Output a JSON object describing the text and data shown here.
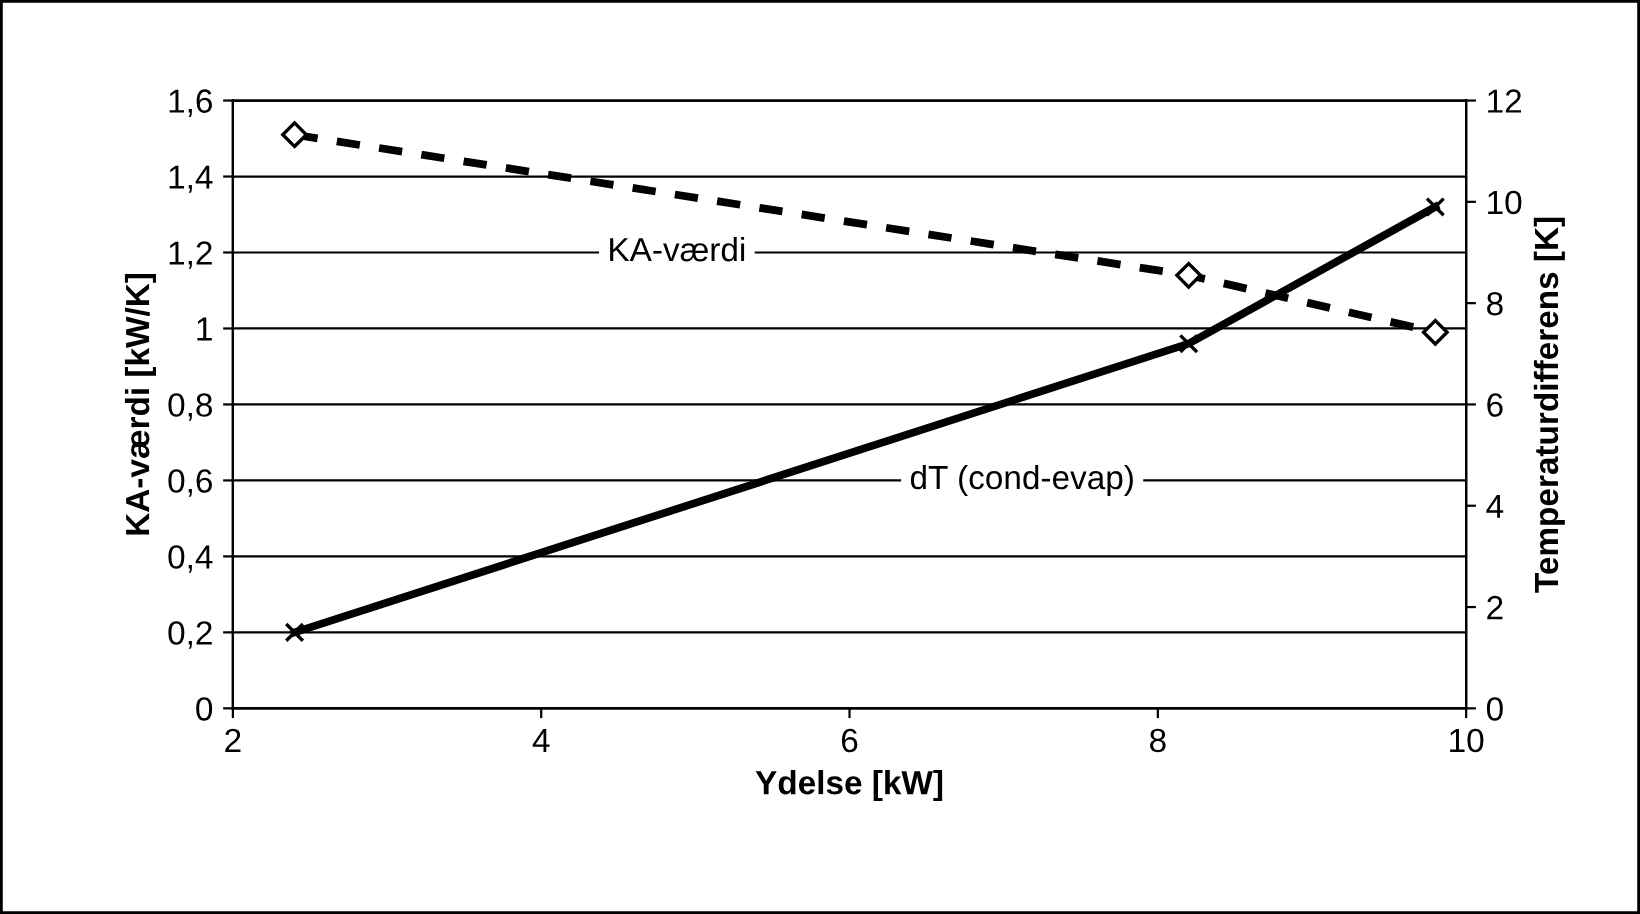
{
  "chart_data": {
    "type": "line",
    "xlabel": "Ydelse [kW]",
    "ylabel": "KA-værdi [kW/K]",
    "y2label": "Temperaturdifferens [K]",
    "xlim": [
      2,
      10
    ],
    "xticks": [
      2,
      4,
      6,
      8,
      10
    ],
    "ylim": [
      0,
      1.6
    ],
    "yticks": [
      {
        "value": 0,
        "label": "0"
      },
      {
        "value": 0.2,
        "label": "0,2"
      },
      {
        "value": 0.4,
        "label": "0,4"
      },
      {
        "value": 0.6,
        "label": "0,6"
      },
      {
        "value": 0.8,
        "label": "0,8"
      },
      {
        "value": 1,
        "label": "1"
      },
      {
        "value": 1.2,
        "label": "1,2"
      },
      {
        "value": 1.4,
        "label": "1,4"
      },
      {
        "value": 1.6,
        "label": "1,6"
      }
    ],
    "y2lim": [
      0,
      12
    ],
    "y2ticks": [
      0,
      2,
      4,
      6,
      8,
      10,
      12
    ],
    "grid": "y",
    "legend": false,
    "series": [
      {
        "name": "KA-værdi",
        "color": "#000000",
        "x": [
          2.4,
          8.2,
          9.8
        ],
        "values": [
          1.51,
          1.14,
          0.99
        ],
        "marker": "diamond",
        "line_style": "dashed"
      },
      {
        "name": "dT (cond-evap)",
        "color": "#000000",
        "x": [
          2.4,
          8.2,
          9.8
        ],
        "values": [
          1.5,
          7.2,
          9.9
        ],
        "axis": "y2",
        "marker": "cross",
        "line_style": "solid"
      }
    ]
  }
}
